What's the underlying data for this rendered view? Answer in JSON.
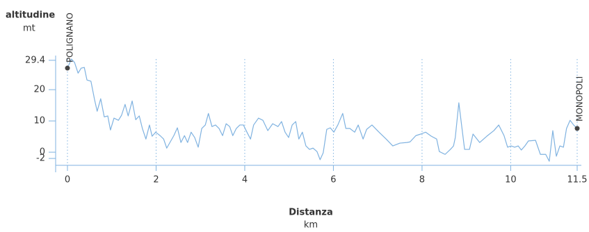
{
  "chart_data": {
    "type": "line",
    "y_axis_label": "altitudine",
    "y_axis_unit": "mt",
    "x_axis_label": "Distanza",
    "x_axis_unit": "km",
    "start_label": "POLIGNANO",
    "end_label": "MONOPOLI",
    "xlim": [
      0,
      11.5
    ],
    "xticks": [
      0,
      2,
      4,
      6,
      8,
      10,
      11.5
    ],
    "ylim": [
      -4.2,
      31
    ],
    "yticks": [
      -2,
      0,
      10,
      20,
      29.4
    ],
    "grid": true,
    "series": [
      {
        "color": "#7fb2e0",
        "x": [
          0,
          0.09,
          0.16,
          0.24,
          0.31,
          0.38,
          0.44,
          0.53,
          0.61,
          0.67,
          0.75,
          0.83,
          0.91,
          0.97,
          1.05,
          1.15,
          1.22,
          1.3,
          1.37,
          1.46,
          1.54,
          1.62,
          1.69,
          1.77,
          1.85,
          1.91,
          1.99,
          2.09,
          2.17,
          2.24,
          2.32,
          2.4,
          2.48,
          2.56,
          2.64,
          2.71,
          2.79,
          2.87,
          2.95,
          3.03,
          3.11,
          3.18,
          3.26,
          3.34,
          3.42,
          3.5,
          3.58,
          3.66,
          3.73,
          3.81,
          3.89,
          3.97,
          4.05,
          4.13,
          4.2,
          4.31,
          4.41,
          4.52,
          4.63,
          4.75,
          4.83,
          4.91,
          4.99,
          5.07,
          5.15,
          5.22,
          5.3,
          5.38,
          5.46,
          5.54,
          5.63,
          5.7,
          5.77,
          5.85,
          5.93,
          6.01,
          6.1,
          6.21,
          6.28,
          6.37,
          6.48,
          6.56,
          6.67,
          6.75,
          6.87,
          7.03,
          7.19,
          7.34,
          7.5,
          7.66,
          7.73,
          7.86,
          7.97,
          8.08,
          8.21,
          8.33,
          8.39,
          8.52,
          8.64,
          8.71,
          8.75,
          8.83,
          8.96,
          9.07,
          9.15,
          9.3,
          9.46,
          9.62,
          9.73,
          9.85,
          9.93,
          10.01,
          10.09,
          10.17,
          10.24,
          10.32,
          10.4,
          10.56,
          10.67,
          10.79,
          10.87,
          10.95,
          11.03,
          11.11,
          11.19,
          11.26,
          11.34,
          11.42,
          11.5
        ],
        "values": [
          26.9,
          29.8,
          28.7,
          25.3,
          26.9,
          27.1,
          23.1,
          22.7,
          16.9,
          13.1,
          17.1,
          11.3,
          11.6,
          7.1,
          10.9,
          10.2,
          11.8,
          15.3,
          11.6,
          16.4,
          10.4,
          11.6,
          7.6,
          4.2,
          8.7,
          5.1,
          6.4,
          5.3,
          4.2,
          1.3,
          3.3,
          5.3,
          7.8,
          3.1,
          5.3,
          3.1,
          6.4,
          4.7,
          1.6,
          7.6,
          8.7,
          12.4,
          8.2,
          8.7,
          7.6,
          5.3,
          9.1,
          8.2,
          5.3,
          7.6,
          8.7,
          8.7,
          6.4,
          4.2,
          8.7,
          10.9,
          10.2,
          6.9,
          9.1,
          8.2,
          9.8,
          6.4,
          4.7,
          8.7,
          9.8,
          4.2,
          6.4,
          2.0,
          0.9,
          1.3,
          0.2,
          -2.4,
          -0.2,
          7.3,
          7.8,
          6.4,
          8.7,
          12.4,
          7.6,
          7.6,
          6.4,
          8.7,
          4.2,
          7.3,
          8.7,
          6.4,
          4.2,
          2.0,
          2.9,
          3.1,
          3.3,
          5.3,
          5.8,
          6.4,
          5.1,
          4.2,
          0.2,
          -0.7,
          0.9,
          2.0,
          4.7,
          15.8,
          0.9,
          0.9,
          5.8,
          3.1,
          5.1,
          6.9,
          8.7,
          5.3,
          1.6,
          2.0,
          1.6,
          2.0,
          0.7,
          2.0,
          3.6,
          3.8,
          -0.7,
          -0.7,
          -2.9,
          6.9,
          -1.3,
          2.0,
          1.6,
          7.6,
          10.2,
          8.7,
          7.6
        ]
      }
    ]
  }
}
